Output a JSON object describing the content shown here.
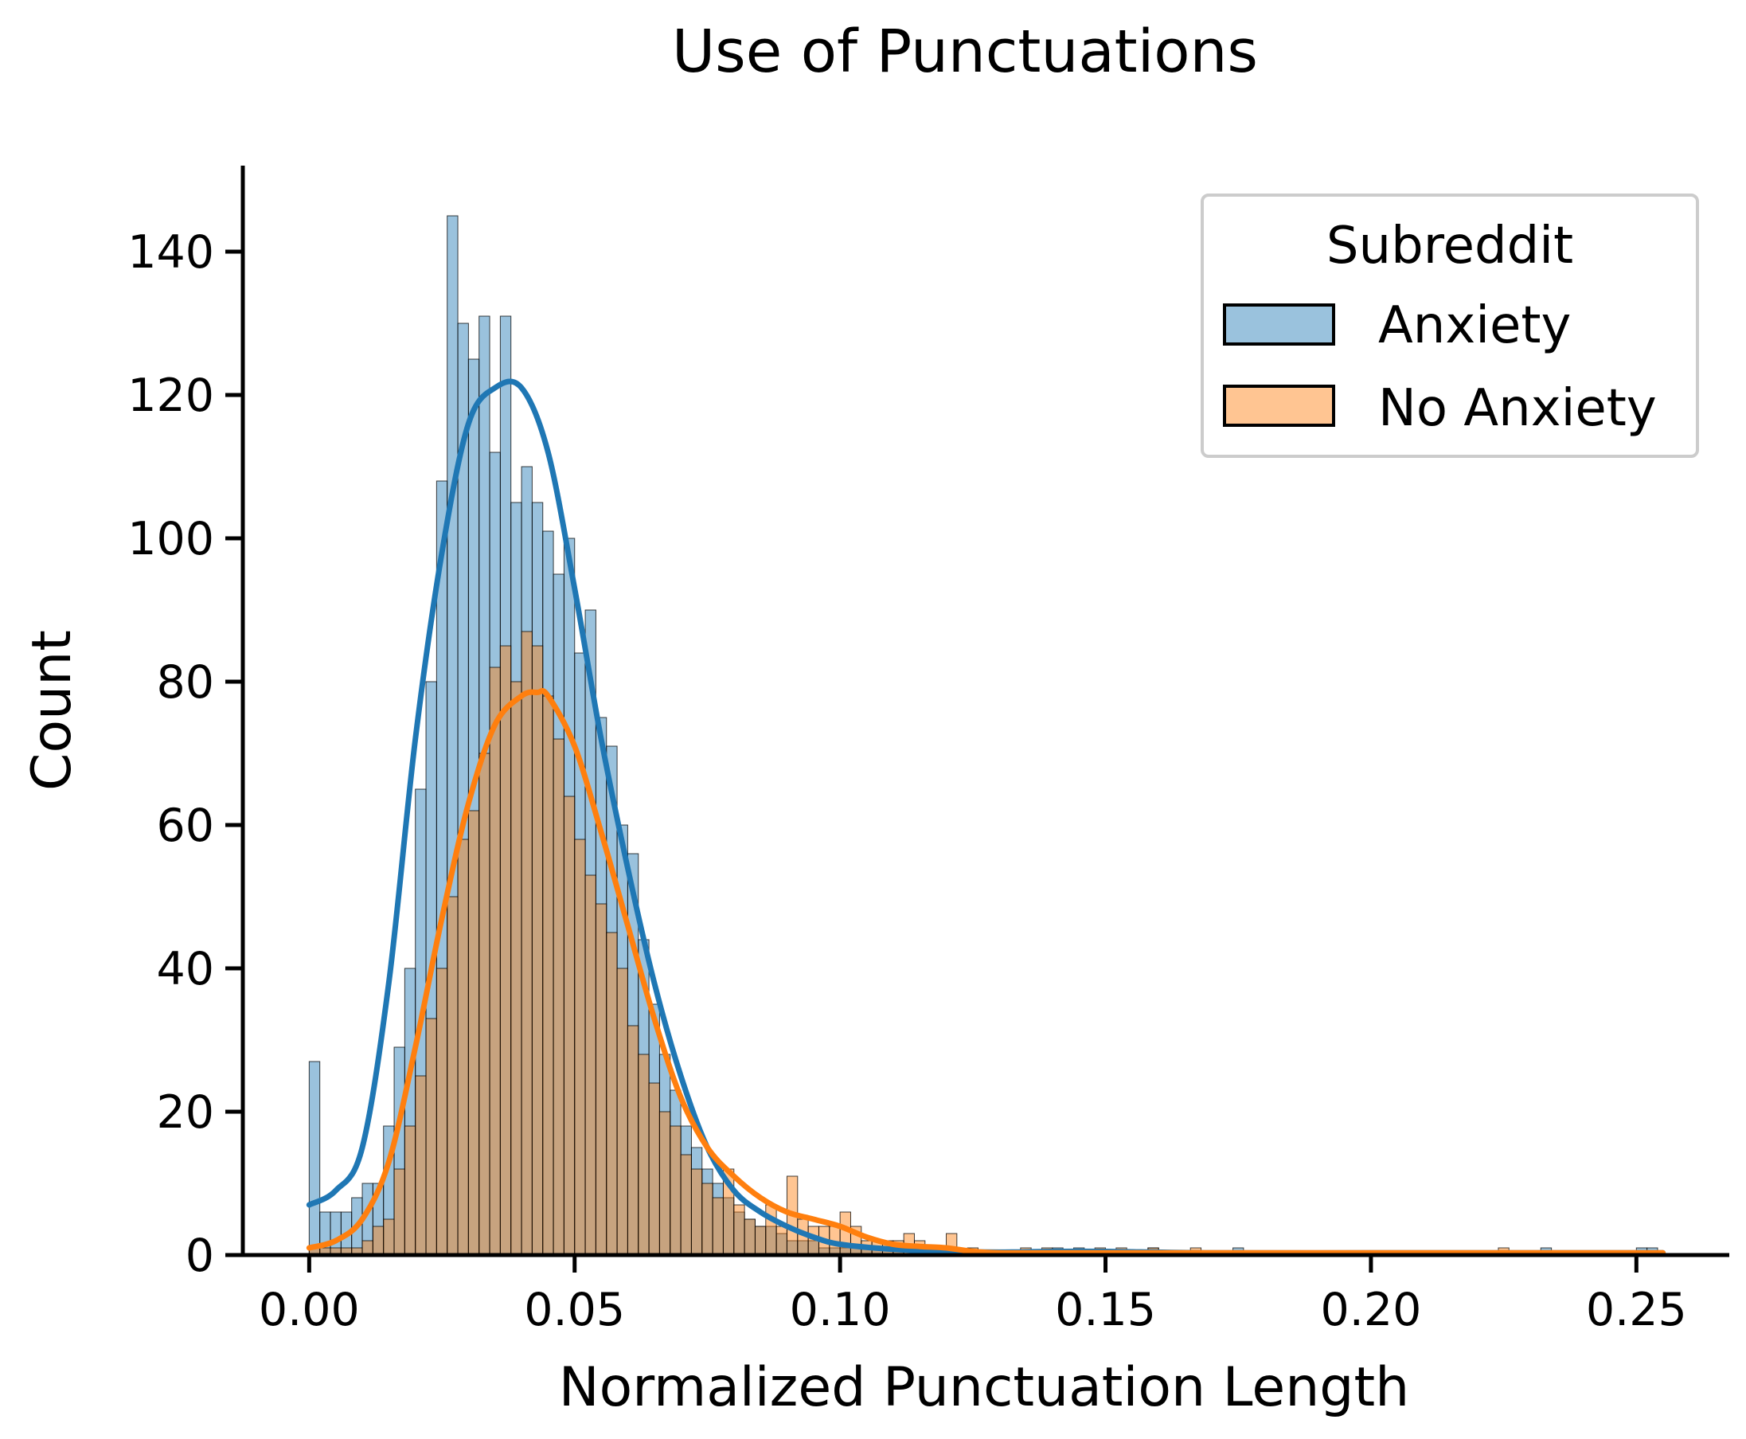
{
  "chart_data": {
    "type": "histogram",
    "title": "Use of Punctuations",
    "xlabel": "Normalized Punctuation Length",
    "ylabel": "Count",
    "xlim": [
      -0.0125,
      0.2675
    ],
    "ylim": [
      0,
      152
    ],
    "xticks": [
      0.0,
      0.05,
      0.1,
      0.15,
      0.2,
      0.25
    ],
    "xtick_labels": [
      "0.00",
      "0.05",
      "0.10",
      "0.15",
      "0.20",
      "0.25"
    ],
    "yticks": [
      0,
      20,
      40,
      60,
      80,
      100,
      120,
      140
    ],
    "ytick_labels": [
      "0",
      "20",
      "40",
      "60",
      "80",
      "100",
      "120",
      "140"
    ],
    "bin_width": 0.002,
    "grid": false,
    "legend": {
      "title": "Subreddit",
      "position": "top-right",
      "entries": [
        "Anxiety",
        "No Anxiety"
      ]
    },
    "colors": {
      "Anxiety": "#1f77b4",
      "No Anxiety": "#ff7f0e"
    },
    "series": [
      {
        "name": "Anxiety",
        "bin_starts": [
          0.0,
          0.002,
          0.004,
          0.006,
          0.008,
          0.01,
          0.012,
          0.014,
          0.016,
          0.018,
          0.02,
          0.022,
          0.024,
          0.026,
          0.028,
          0.03,
          0.032,
          0.034,
          0.036,
          0.038,
          0.04,
          0.042,
          0.044,
          0.046,
          0.048,
          0.05,
          0.052,
          0.054,
          0.056,
          0.058,
          0.06,
          0.062,
          0.064,
          0.066,
          0.068,
          0.07,
          0.072,
          0.074,
          0.076,
          0.078,
          0.08,
          0.082,
          0.084,
          0.086,
          0.088,
          0.09,
          0.092,
          0.094,
          0.096,
          0.098,
          0.1,
          0.102,
          0.104,
          0.106,
          0.108,
          0.11,
          0.114,
          0.14,
          0.144,
          0.158,
          0.174,
          0.232,
          0.25,
          0.252
        ],
        "counts": [
          27,
          6,
          6,
          6,
          8,
          10,
          10,
          18,
          29,
          40,
          65,
          80,
          108,
          145,
          130,
          125,
          131,
          112,
          131,
          105,
          110,
          105,
          101,
          95,
          100,
          84,
          90,
          75,
          71,
          60,
          56,
          44,
          35,
          28,
          23,
          18,
          15,
          12,
          10,
          8,
          6,
          5,
          4,
          4,
          3,
          2,
          2,
          2,
          1,
          1,
          1,
          1,
          1,
          1,
          1,
          1,
          1,
          1,
          1,
          1,
          1,
          1,
          1,
          1
        ]
      },
      {
        "name": "No Anxiety",
        "bin_starts": [
          0.0,
          0.002,
          0.004,
          0.006,
          0.008,
          0.01,
          0.012,
          0.014,
          0.016,
          0.018,
          0.02,
          0.022,
          0.024,
          0.026,
          0.028,
          0.03,
          0.032,
          0.034,
          0.036,
          0.038,
          0.04,
          0.042,
          0.044,
          0.046,
          0.048,
          0.05,
          0.052,
          0.054,
          0.056,
          0.058,
          0.06,
          0.062,
          0.064,
          0.066,
          0.068,
          0.07,
          0.072,
          0.074,
          0.076,
          0.078,
          0.08,
          0.082,
          0.084,
          0.086,
          0.088,
          0.09,
          0.092,
          0.094,
          0.096,
          0.098,
          0.1,
          0.102,
          0.104,
          0.106,
          0.108,
          0.11,
          0.112,
          0.114,
          0.116,
          0.118,
          0.12,
          0.124,
          0.134,
          0.138,
          0.148,
          0.152,
          0.158,
          0.166,
          0.224
        ],
        "counts": [
          1,
          1,
          1,
          1,
          1,
          2,
          4,
          5,
          12,
          18,
          25,
          33,
          40,
          50,
          58,
          62,
          70,
          82,
          85,
          80,
          87,
          85,
          78,
          72,
          64,
          58,
          53,
          49,
          45,
          40,
          32,
          28,
          24,
          20,
          18,
          14,
          12,
          10,
          8,
          12,
          7,
          5,
          4,
          7,
          4,
          11,
          5,
          4,
          4,
          4,
          6,
          4,
          2,
          2,
          2,
          2,
          3,
          2,
          1,
          1,
          3,
          1,
          1,
          1,
          1,
          1,
          1,
          1,
          1
        ]
      }
    ],
    "kde": [
      {
        "name": "Anxiety",
        "x": [
          0.0,
          0.005,
          0.01,
          0.015,
          0.02,
          0.025,
          0.03,
          0.035,
          0.04,
          0.045,
          0.05,
          0.055,
          0.06,
          0.065,
          0.07,
          0.075,
          0.08,
          0.085,
          0.09,
          0.095,
          0.1,
          0.11,
          0.12,
          0.13,
          0.14,
          0.15,
          0.17,
          0.2,
          0.23,
          0.255
        ],
        "y": [
          7,
          9,
          15,
          38,
          72,
          98,
          116,
          121,
          121,
          112,
          93,
          72,
          54,
          38,
          25,
          15,
          9,
          6,
          4,
          2.5,
          1.5,
          0.8,
          0.5,
          0.4,
          0.5,
          0.5,
          0.3,
          0.3,
          0.3,
          0.3
        ]
      },
      {
        "name": "No Anxiety",
        "x": [
          0.0,
          0.005,
          0.01,
          0.015,
          0.02,
          0.025,
          0.03,
          0.035,
          0.04,
          0.043,
          0.045,
          0.05,
          0.055,
          0.06,
          0.065,
          0.07,
          0.075,
          0.08,
          0.085,
          0.09,
          0.095,
          0.1,
          0.105,
          0.11,
          0.115,
          0.12,
          0.125,
          0.13,
          0.14,
          0.15,
          0.17,
          0.2,
          0.22,
          0.255
        ],
        "y": [
          1,
          2,
          5,
          13,
          29,
          47,
          63,
          74,
          78,
          78.5,
          78,
          71,
          59,
          46,
          33,
          22,
          15,
          11,
          8,
          6,
          5,
          4,
          2.5,
          1.5,
          1.2,
          1,
          0.5,
          0.3,
          0.3,
          0.3,
          0.3,
          0.3,
          0.3,
          0.3
        ]
      }
    ]
  }
}
